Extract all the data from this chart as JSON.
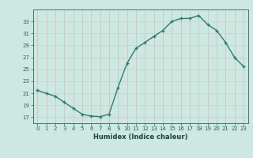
{
  "x": [
    0,
    1,
    2,
    3,
    4,
    5,
    6,
    7,
    8,
    9,
    10,
    11,
    12,
    13,
    14,
    15,
    16,
    17,
    18,
    19,
    20,
    21,
    22,
    23
  ],
  "y": [
    21.5,
    21.0,
    20.5,
    19.5,
    18.5,
    17.5,
    17.2,
    17.1,
    17.5,
    22.0,
    26.0,
    28.5,
    29.5,
    30.5,
    31.5,
    33.0,
    33.5,
    33.5,
    34.0,
    32.5,
    31.5,
    29.5,
    27.0,
    25.5
  ],
  "xlabel": "Humidex (Indice chaleur)",
  "ylim": [
    16,
    35
  ],
  "xlim": [
    -0.5,
    23.5
  ],
  "yticks": [
    17,
    19,
    21,
    23,
    25,
    27,
    29,
    31,
    33
  ],
  "xticks": [
    0,
    1,
    2,
    3,
    4,
    5,
    6,
    7,
    8,
    9,
    10,
    11,
    12,
    13,
    14,
    15,
    16,
    17,
    18,
    19,
    20,
    21,
    22,
    23
  ],
  "line_color": "#2d7d6e",
  "marker_color": "#2d7d6e",
  "bg_color": "#cce8e0",
  "hgrid_color": "#b8d8d0",
  "vgrid_color": "#d9b8b8",
  "text_color": "#2d6060",
  "xlabel_color": "#1a4040"
}
